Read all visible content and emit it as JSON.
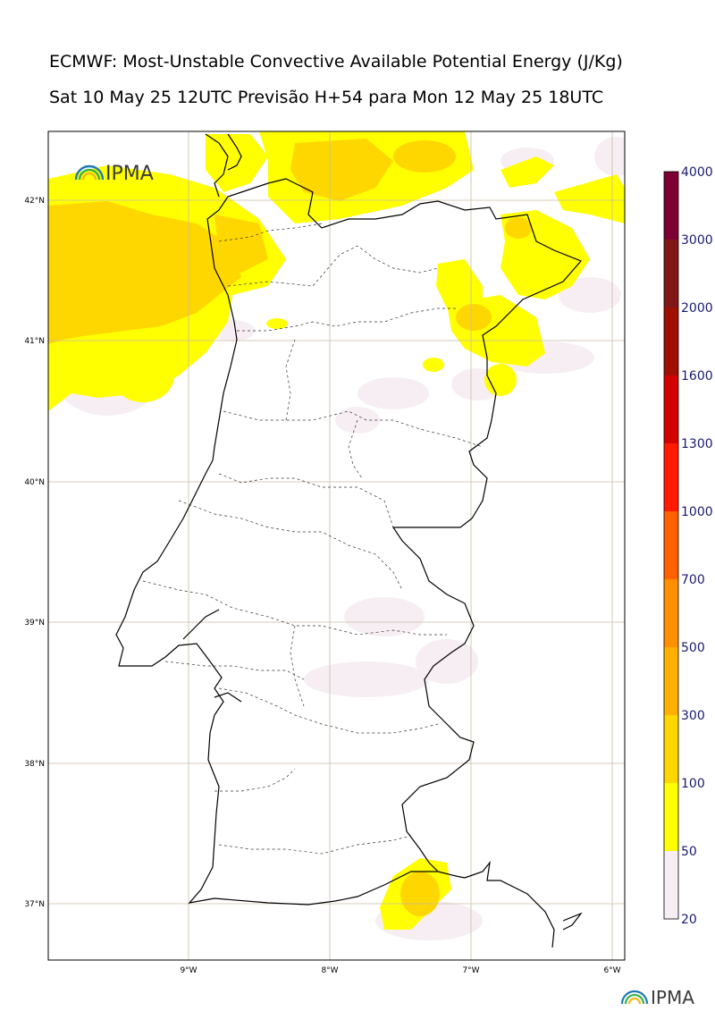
{
  "header": {
    "title": "ECMWF: Most-Unstable Convective Available Potential Energy (J/Kg)",
    "subtitle": "Sat 10 May 25 12UTC Previsão H+54 para Mon 12 May 25 18UTC"
  },
  "map": {
    "lat_labels": [
      "42°N",
      "41°N",
      "40°N",
      "39°N",
      "38°N",
      "37°N"
    ],
    "lon_labels": [
      "9°W",
      "8°W",
      "7°W",
      "6°W"
    ],
    "lat_values": [
      42,
      41,
      40,
      39,
      38,
      37
    ],
    "lon_values": [
      -9,
      -8,
      -7,
      -6
    ],
    "lat_range": [
      36.6,
      42.5
    ],
    "lon_range": [
      -10.0,
      -5.9
    ],
    "grid": true
  },
  "logo": {
    "text": "IPMA"
  },
  "colorbar": {
    "levels": [
      "20",
      "50",
      "100",
      "300",
      "500",
      "700",
      "1000",
      "1300",
      "1600",
      "2000",
      "3000",
      "4000"
    ],
    "colors": [
      "#f6eef2",
      "#ffff00",
      "#ffd700",
      "#ffb000",
      "#ff9000",
      "#ff6000",
      "#ff1a00",
      "#d40000",
      "#a01000",
      "#801818",
      "#7d0035",
      "#5a1000"
    ]
  }
}
